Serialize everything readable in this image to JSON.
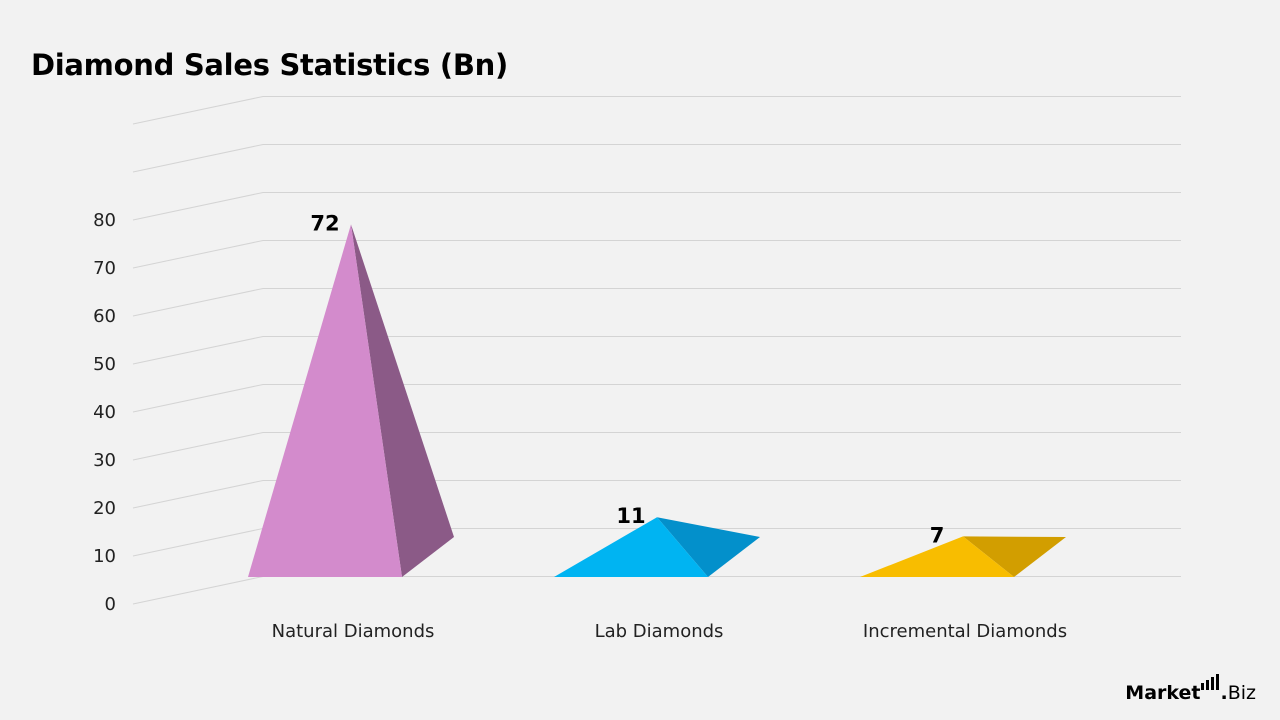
{
  "header": {
    "title": "Diamond Sales Statistics (Bn)"
  },
  "chart_data": {
    "type": "bar",
    "style": "3d-pyramid",
    "title": "Diamond Sales Statistics (Bn)",
    "xlabel": "",
    "ylabel": "",
    "ylim": [
      0,
      100
    ],
    "yticks": [
      0,
      10,
      20,
      30,
      40,
      50,
      60,
      70,
      80
    ],
    "grid": true,
    "legend": "none",
    "categories": [
      "Natural Diamonds",
      "Lab Diamonds",
      "Incremental Diamonds"
    ],
    "values": [
      72,
      11,
      7
    ],
    "data_labels": [
      "72",
      "11",
      "7"
    ],
    "colors": [
      {
        "front": "#d38bcc",
        "side": "#8b5a87"
      },
      {
        "front": "#00b4f2",
        "side": "#0390cb"
      },
      {
        "front": "#f8bd00",
        "side": "#d29e00"
      }
    ]
  },
  "brand": {
    "name_left": "Market",
    "name_right": "Biz",
    "dot": "."
  }
}
